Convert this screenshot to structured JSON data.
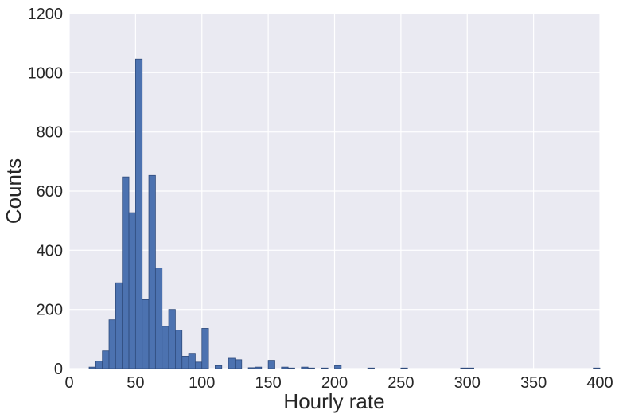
{
  "chart_data": {
    "type": "bar",
    "title": "",
    "xlabel": "Hourly rate",
    "ylabel": "Counts",
    "xlim": [
      0,
      400
    ],
    "ylim": [
      0,
      1200
    ],
    "grid": true,
    "bar_color": "#4c72b0",
    "background_color": "#eaeaf2",
    "x_ticks": [
      0,
      50,
      100,
      150,
      200,
      250,
      300,
      350,
      400
    ],
    "y_ticks": [
      0,
      200,
      400,
      600,
      800,
      1000,
      1200
    ],
    "bin_width": 5,
    "bins": [
      {
        "x0": 15,
        "count": 5
      },
      {
        "x0": 20,
        "count": 25
      },
      {
        "x0": 25,
        "count": 60
      },
      {
        "x0": 30,
        "count": 165
      },
      {
        "x0": 35,
        "count": 290
      },
      {
        "x0": 40,
        "count": 648
      },
      {
        "x0": 45,
        "count": 527
      },
      {
        "x0": 50,
        "count": 1046
      },
      {
        "x0": 55,
        "count": 233
      },
      {
        "x0": 60,
        "count": 653
      },
      {
        "x0": 65,
        "count": 340
      },
      {
        "x0": 70,
        "count": 143
      },
      {
        "x0": 75,
        "count": 200
      },
      {
        "x0": 80,
        "count": 130
      },
      {
        "x0": 85,
        "count": 42
      },
      {
        "x0": 90,
        "count": 52
      },
      {
        "x0": 95,
        "count": 22
      },
      {
        "x0": 100,
        "count": 136
      },
      {
        "x0": 110,
        "count": 10
      },
      {
        "x0": 120,
        "count": 35
      },
      {
        "x0": 125,
        "count": 30
      },
      {
        "x0": 135,
        "count": 3
      },
      {
        "x0": 140,
        "count": 5
      },
      {
        "x0": 150,
        "count": 28
      },
      {
        "x0": 160,
        "count": 5
      },
      {
        "x0": 165,
        "count": 2
      },
      {
        "x0": 175,
        "count": 5
      },
      {
        "x0": 180,
        "count": 2
      },
      {
        "x0": 190,
        "count": 2
      },
      {
        "x0": 200,
        "count": 10
      },
      {
        "x0": 225,
        "count": 2
      },
      {
        "x0": 250,
        "count": 2
      },
      {
        "x0": 295,
        "count": 2
      },
      {
        "x0": 300,
        "count": 2
      },
      {
        "x0": 395,
        "count": 2
      }
    ]
  }
}
